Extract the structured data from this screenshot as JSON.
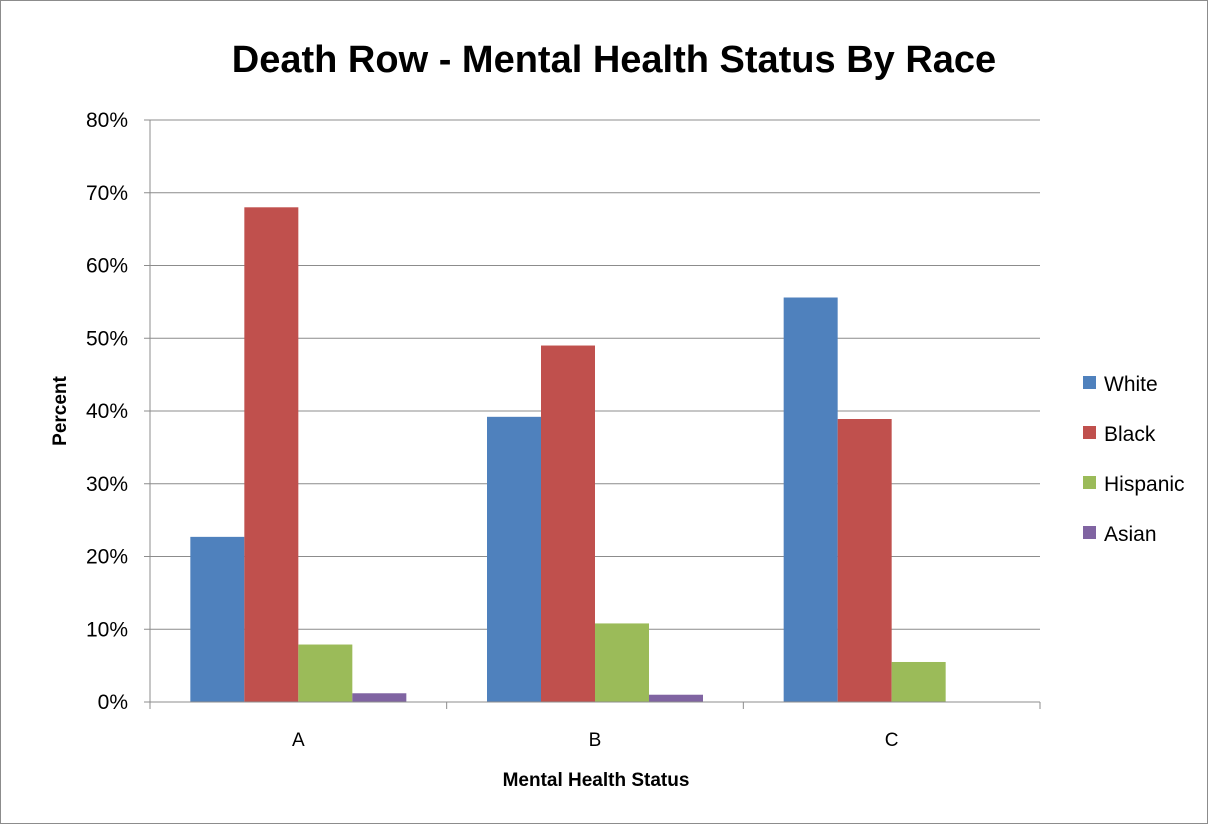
{
  "chart_data": {
    "type": "bar",
    "title": "Death Row - Mental Health Status By Race",
    "xlabel": "Mental Health Status",
    "ylabel": "Percent",
    "categories": [
      "A",
      "B",
      "C"
    ],
    "series": [
      {
        "name": "White",
        "values": [
          22.7,
          39.2,
          55.6
        ],
        "color": "#4f81bd"
      },
      {
        "name": "Black",
        "values": [
          68.0,
          49.0,
          38.9
        ],
        "color": "#c0504d"
      },
      {
        "name": "Hispanic",
        "values": [
          7.9,
          10.8,
          5.5
        ],
        "color": "#9bbb59"
      },
      {
        "name": "Asian",
        "values": [
          1.2,
          1.0,
          0
        ],
        "color": "#8064a2"
      }
    ],
    "ylim": [
      0,
      80
    ],
    "yticks": [
      "0%",
      "10%",
      "20%",
      "30%",
      "40%",
      "50%",
      "60%",
      "70%",
      "80%"
    ],
    "grid": true,
    "legend_position": "right"
  }
}
